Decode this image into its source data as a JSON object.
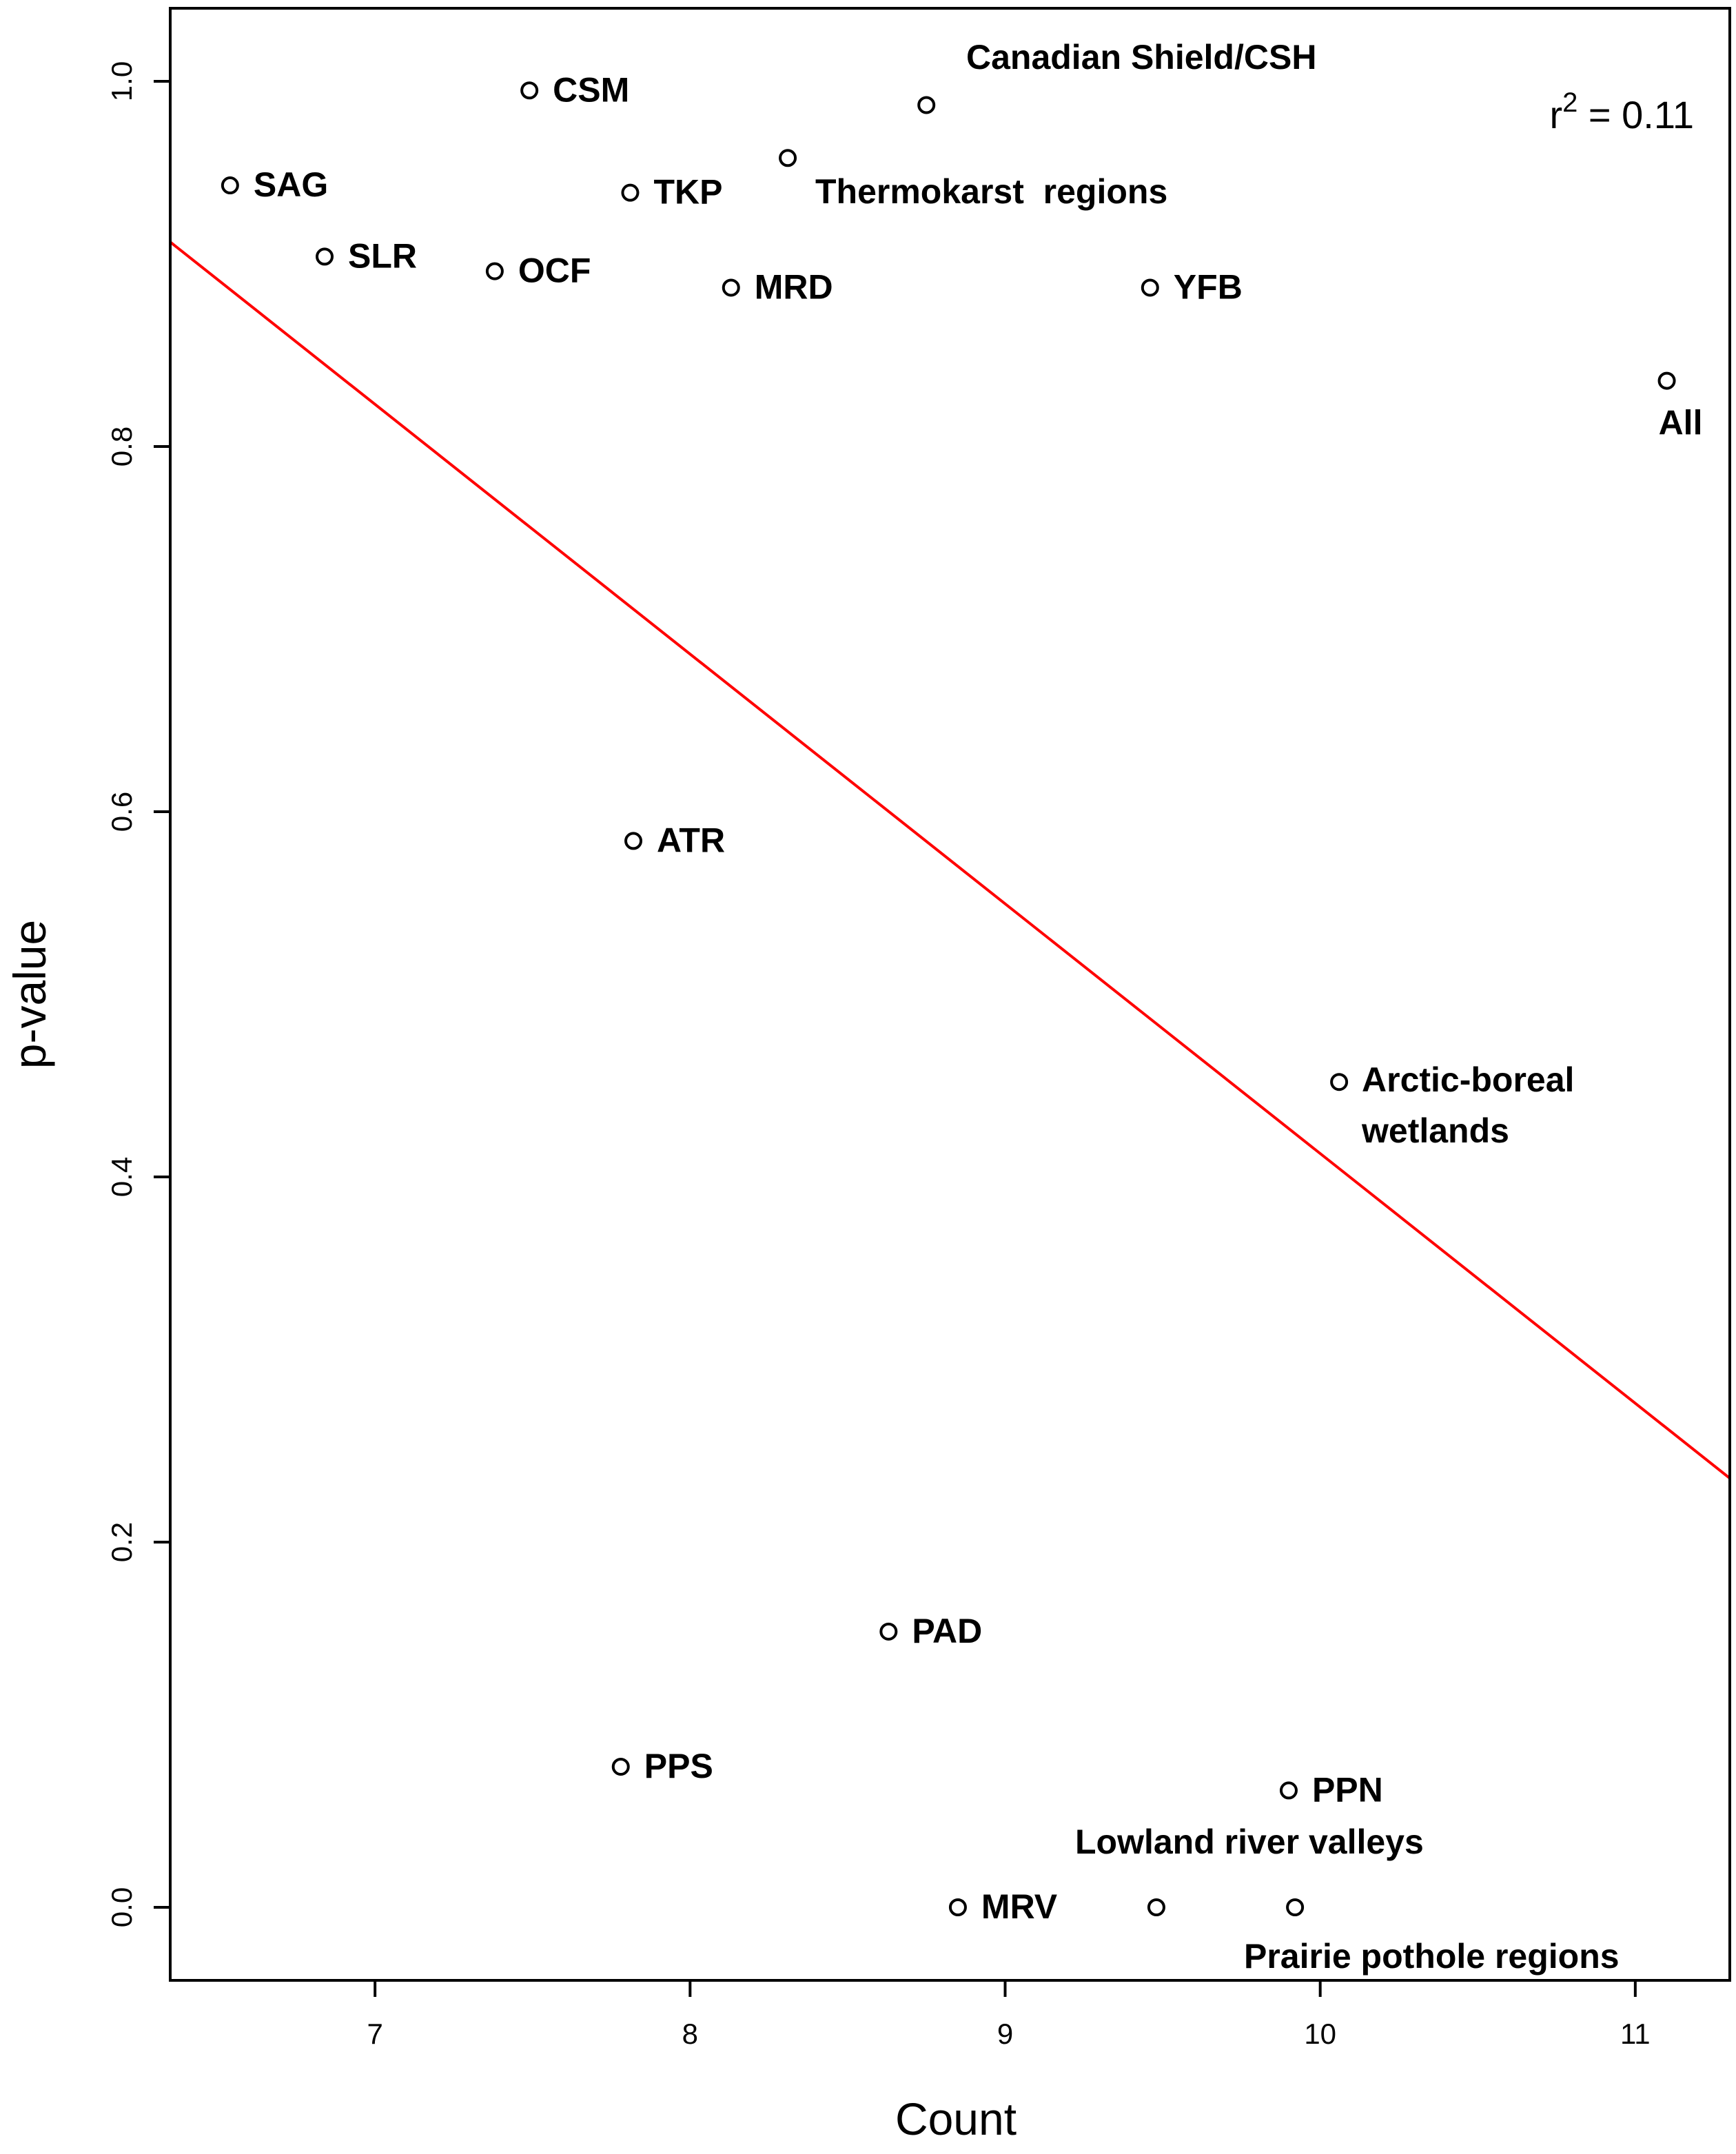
{
  "chart_data": {
    "type": "scatter",
    "title": "",
    "xlabel": "Count",
    "ylabel": "p-value",
    "xlim": [
      6.35,
      11.3
    ],
    "ylim": [
      -0.04,
      1.04
    ],
    "xticks": [
      7,
      8,
      9,
      10,
      11
    ],
    "yticks": [
      0.0,
      0.2,
      0.4,
      0.6,
      0.8,
      1.0
    ],
    "xtick_labels": [
      "7",
      "8",
      "9",
      "10",
      "11"
    ],
    "ytick_labels": [
      "0.0",
      "0.2",
      "0.4",
      "0.6",
      "0.8",
      "1.0"
    ],
    "grid": false,
    "points": [
      {
        "label": "SAG",
        "x": 6.54,
        "y": 0.943
      },
      {
        "label": "SLR",
        "x": 6.84,
        "y": 0.904
      },
      {
        "label": "CSM",
        "x": 7.49,
        "y": 0.995
      },
      {
        "label": "OCF",
        "x": 7.38,
        "y": 0.896
      },
      {
        "label": "TKP",
        "x": 7.81,
        "y": 0.939
      },
      {
        "label": "MRD",
        "x": 8.13,
        "y": 0.887
      },
      {
        "label": "",
        "x": 8.31,
        "y": 0.958
      },
      {
        "label": "",
        "x": 8.75,
        "y": 0.987
      },
      {
        "label": "YFB",
        "x": 9.46,
        "y": 0.887
      },
      {
        "label": "All",
        "x": 11.1,
        "y": 0.836
      },
      {
        "label": "ATR",
        "x": 7.82,
        "y": 0.584
      },
      {
        "label": "",
        "x": 10.06,
        "y": 0.452
      },
      {
        "label": "PAD",
        "x": 8.63,
        "y": 0.151
      },
      {
        "label": "PPS",
        "x": 7.78,
        "y": 0.077
      },
      {
        "label": "PPN",
        "x": 9.9,
        "y": 0.064
      },
      {
        "label": "MRV",
        "x": 8.85,
        "y": 0.0
      },
      {
        "label": "",
        "x": 9.48,
        "y": 0.0
      },
      {
        "label": "",
        "x": 9.92,
        "y": 0.0
      }
    ],
    "annotations": [
      {
        "text": "Canadian Shield/CSH"
      },
      {
        "text": "Thermokarst  regions"
      },
      {
        "text": "Arctic-boreal"
      },
      {
        "text": "wetlands"
      },
      {
        "text": "Lowland river valleys"
      },
      {
        "text": "Prairie pothole regions"
      }
    ],
    "regression_line": {
      "color": "#ff0000",
      "x": [
        6.35,
        11.3
      ],
      "y": [
        0.912,
        0.235
      ]
    },
    "r2": {
      "prefix": "r",
      "superscript": "2",
      "value_text": " = 0.11"
    }
  }
}
